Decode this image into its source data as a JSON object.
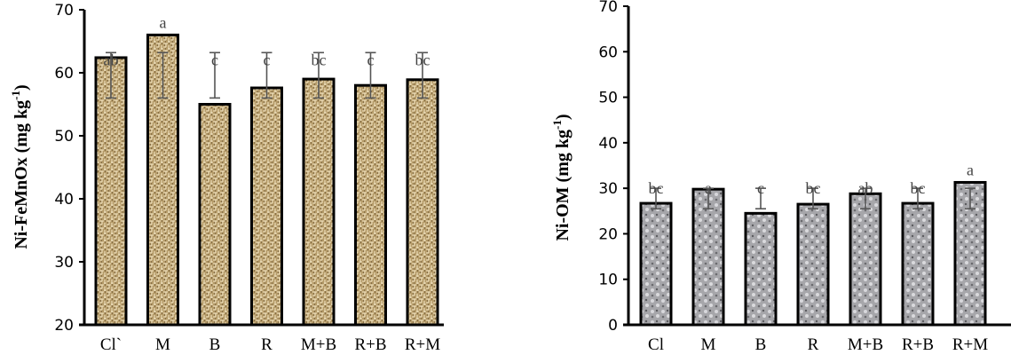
{
  "chart_data": [
    {
      "type": "bar",
      "title": "",
      "xlabel": "",
      "ylabel": "Ni-FeMnOx (mg kg-1)",
      "ylabel_main": "Ni-FeMnOx (mg kg",
      "ylabel_sup": "-1",
      "ylabel_end": ")",
      "ylim": [
        20,
        70
      ],
      "yticks": [
        20,
        30,
        40,
        50,
        60,
        70
      ],
      "grid": false,
      "categories": [
        "Cl`",
        "M",
        "B",
        "R",
        "M+B",
        "R+B",
        "R+M"
      ],
      "values": [
        62.4,
        66.0,
        55.0,
        57.6,
        59.0,
        58.0,
        58.9
      ],
      "error_low": [
        56.0,
        56.0,
        56.0,
        56.0,
        56.0,
        56.0,
        56.0
      ],
      "error_high": [
        63.2,
        63.2,
        63.2,
        63.2,
        63.2,
        63.2,
        63.2
      ],
      "significance": [
        "ab",
        "a",
        "c",
        "c",
        "bc",
        "c",
        "bc"
      ],
      "fill_color": "#b49a68"
    },
    {
      "type": "bar",
      "title": "",
      "xlabel": "",
      "ylabel": "Ni-OM (mg kg-1)",
      "ylabel_main": "Ni-OM (mg kg",
      "ylabel_sup": "-1",
      "ylabel_end": ")",
      "ylim": [
        0,
        70
      ],
      "yticks": [
        0,
        10,
        20,
        30,
        40,
        50,
        60,
        70
      ],
      "grid": false,
      "categories": [
        "Cl",
        "M",
        "B",
        "R",
        "M+B",
        "R+B",
        "R+M"
      ],
      "values": [
        26.7,
        29.8,
        24.5,
        26.5,
        28.8,
        26.7,
        31.3
      ],
      "error_low": [
        25.5,
        25.5,
        25.5,
        25.5,
        25.5,
        25.5,
        25.5
      ],
      "error_high": [
        30.0,
        30.0,
        30.0,
        30.0,
        30.0,
        30.0,
        30.0
      ],
      "significance": [
        "bc",
        "a",
        "c",
        "bc",
        "ab",
        "bc",
        "a"
      ],
      "fill_color": "#a4a4a8"
    }
  ]
}
